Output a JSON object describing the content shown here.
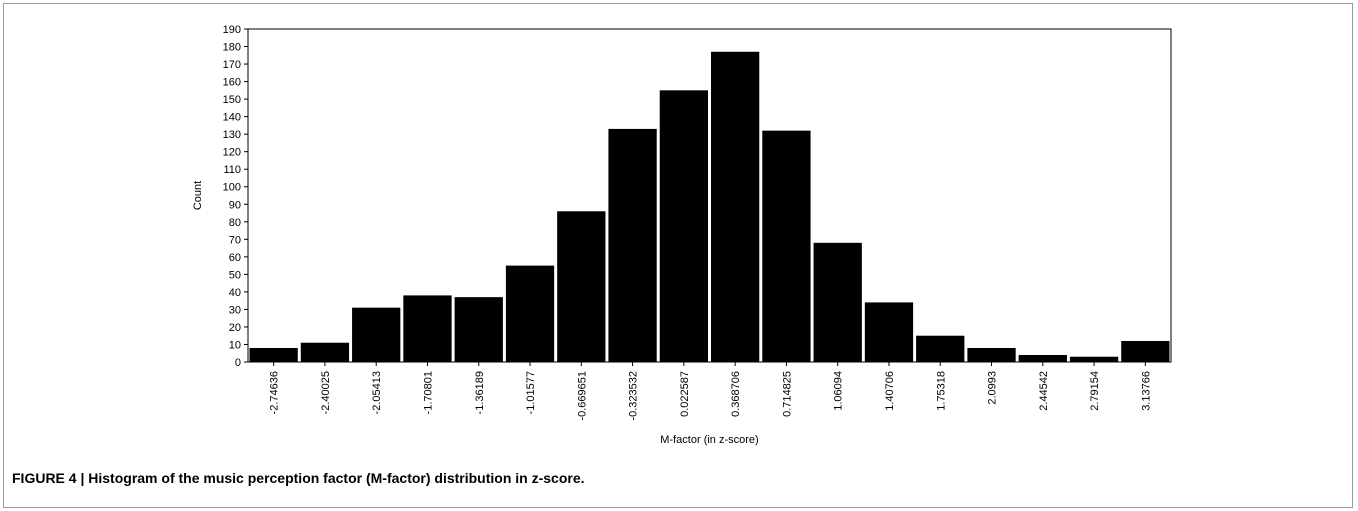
{
  "caption": "FIGURE 4 | Histogram of the music perception factor (M-factor) distribution in z-score.",
  "chart_data": {
    "type": "bar",
    "title": "",
    "xlabel": "M-factor (in z-score)",
    "ylabel": "Count",
    "categories": [
      "-2.74636",
      "-2.40025",
      "-2.05413",
      "-1.70801",
      "-1.36189",
      "-1.01577",
      "-0.669651",
      "-0.323532",
      "0.022587",
      "0.368706",
      "0.714825",
      "1.06094",
      "1.40706",
      "1.75318",
      "2.0993",
      "2.44542",
      "2.79154",
      "3.13766"
    ],
    "values": [
      8,
      11,
      31,
      38,
      37,
      55,
      86,
      133,
      155,
      177,
      132,
      68,
      34,
      15,
      8,
      4,
      3,
      12
    ],
    "ylim": [
      0,
      190
    ],
    "yticks": [
      0,
      10,
      20,
      30,
      40,
      50,
      60,
      70,
      80,
      90,
      100,
      110,
      120,
      130,
      140,
      150,
      160,
      170,
      180,
      190
    ],
    "bar_color": "#000000",
    "grid": false,
    "legend": "none"
  }
}
